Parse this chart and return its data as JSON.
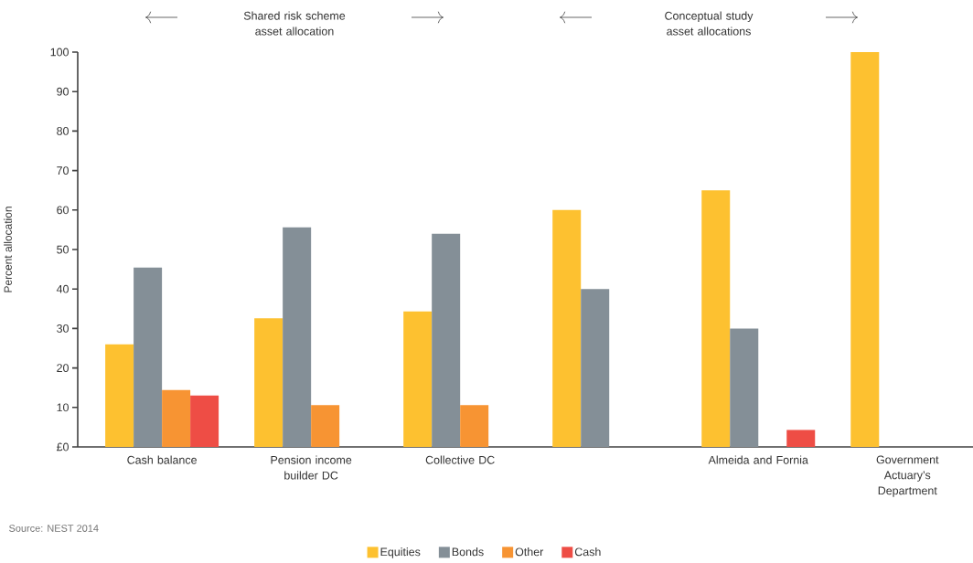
{
  "chart_data": {
    "type": "bar",
    "ylabel": "Percent allocation",
    "categories": [
      "Cash balance",
      "Pension income builder DC",
      "Collective DC",
      null,
      "Almeida and Fornia",
      "Government Actuary’s Department"
    ],
    "series": [
      {
        "name": "Equities",
        "color": "#fdc130",
        "values": [
          26,
          32.6,
          34.3,
          60,
          65,
          100
        ]
      },
      {
        "name": "Bonds",
        "color": "#848f97",
        "values": [
          45.4,
          55.6,
          54,
          40,
          30,
          null
        ]
      },
      {
        "name": "Other",
        "color": "#f79433",
        "values": [
          14.4,
          10.6,
          10.6,
          null,
          null,
          null
        ]
      },
      {
        "name": "Cash",
        "color": "#ee4d45",
        "values": [
          13,
          null,
          null,
          null,
          4.3,
          null
        ]
      }
    ],
    "ylim": [
      0,
      100
    ],
    "yticks": [
      {
        "value": 0,
        "label": "£0"
      },
      10,
      20,
      30,
      40,
      50,
      60,
      70,
      80,
      90,
      100
    ],
    "legend": "bottom",
    "annotations": [
      "Shared risk scheme asset allocation",
      "Conceptual study asset allocations",
      "Source: NEST 2014"
    ]
  }
}
